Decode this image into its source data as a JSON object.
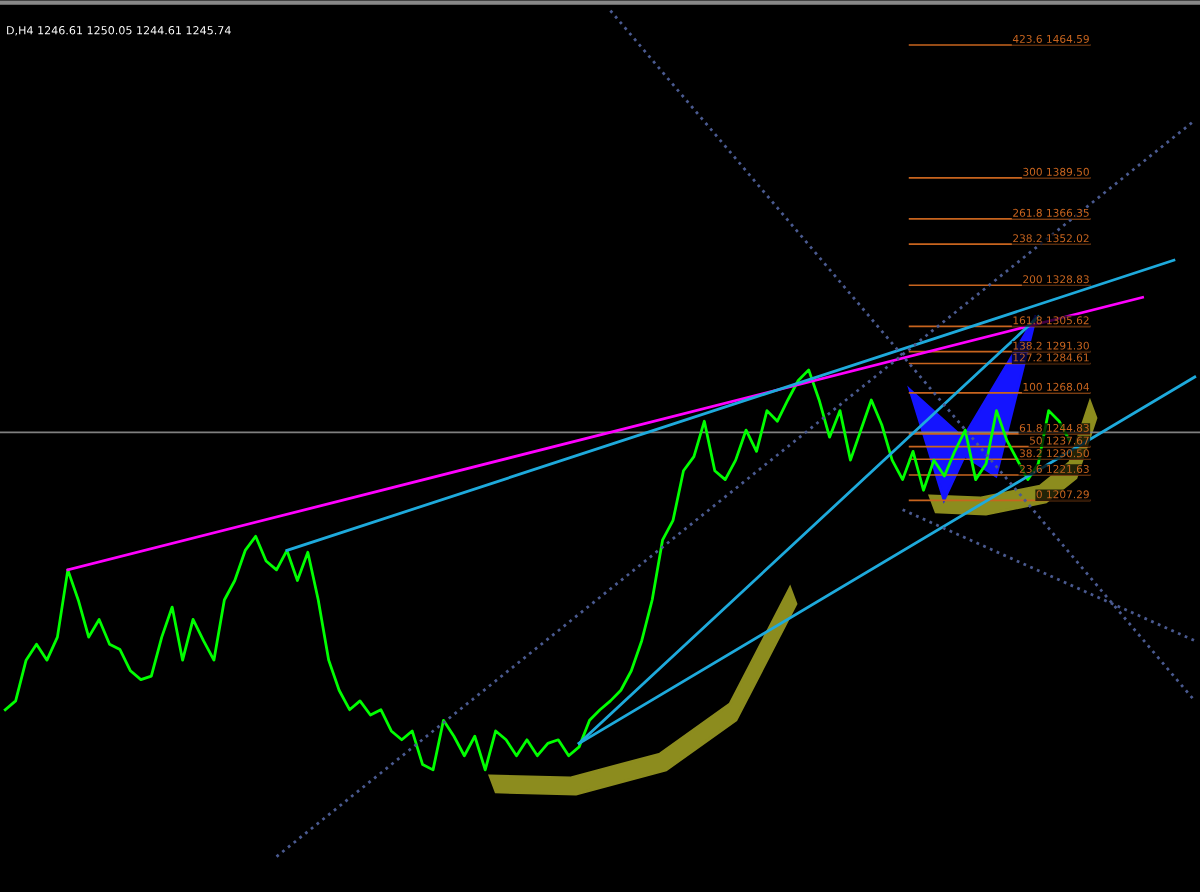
{
  "chart_data": {
    "type": "line",
    "title": "D,H4 1246.61 1250.05 1244.61 1245.74",
    "ylim": [
      986,
      1490
    ],
    "categories": [
      null,
      null,
      null,
      null,
      null,
      null,
      null,
      null,
      null,
      null,
      null,
      null,
      null,
      null,
      null,
      null,
      null,
      null,
      null,
      null,
      null,
      null,
      null,
      null,
      null,
      null,
      null,
      null,
      null,
      null,
      null,
      null,
      null,
      null,
      null,
      null,
      null,
      null,
      null,
      null,
      null,
      null,
      null,
      null,
      null,
      null,
      null,
      null,
      null,
      null,
      null,
      null,
      null,
      null,
      null,
      null,
      null,
      null,
      null,
      null,
      null,
      null,
      null,
      null,
      null,
      null,
      null,
      null,
      null,
      null,
      null,
      null,
      null,
      null,
      null,
      null,
      null,
      null,
      null,
      null,
      null,
      null,
      null,
      null,
      null,
      null,
      null,
      null,
      null,
      null,
      null,
      null,
      null,
      null,
      null,
      null,
      null,
      null,
      null,
      null,
      null,
      null,
      null,
      null,
      null,
      null,
      null,
      null,
      null,
      null,
      null,
      null,
      null,
      null,
      null
    ],
    "series": [
      {
        "color": "#00ff00",
        "values": [
          1089,
          1094,
          1117,
          1126,
          1117,
          1130,
          1168,
          1151,
          1130,
          1140,
          1126,
          1123,
          1111,
          1106,
          1108,
          1130,
          1147,
          1117,
          1140,
          1128,
          1117,
          1151,
          1162,
          1179,
          1187,
          1173,
          1168,
          1179,
          1162,
          1178,
          1151,
          1117,
          1100,
          1089,
          1094,
          1086,
          1089,
          1077,
          1072,
          1077,
          1058,
          1055,
          1083,
          1074,
          1063,
          1074,
          1055,
          1077,
          1072,
          1063,
          1072,
          1063,
          1070,
          1072,
          1063,
          1068,
          1083,
          1089,
          1094,
          1100,
          1111,
          1128,
          1151,
          1185,
          1196,
          1224,
          1232,
          1252,
          1224,
          1219,
          1230,
          1247,
          1235,
          1258,
          1252,
          1264,
          1275,
          1281,
          1264,
          1243,
          1258,
          1230,
          1247,
          1264,
          1250,
          1230,
          1219,
          1235,
          1213,
          1230,
          1221,
          1235,
          1247,
          1219,
          1228,
          1258,
          1241,
          1230,
          1219,
          1228,
          1258,
          1252,
          1241,
          null,
          null,
          null,
          null,
          null,
          null,
          null,
          null,
          null,
          null,
          null,
          null
        ]
      },
      {
        "type": "line",
        "color": "#ff00ff",
        "values": [
          null,
          null,
          null,
          null,
          null,
          null,
          1168,
          null,
          null,
          null,
          null,
          null,
          null,
          null,
          null,
          null,
          null,
          null,
          null,
          null,
          null,
          null,
          null,
          null,
          null,
          null,
          null,
          null,
          null,
          null,
          null,
          null,
          null,
          null,
          null,
          null,
          null,
          null,
          null,
          null,
          null,
          null,
          null,
          null,
          null,
          null,
          null,
          null,
          null,
          null,
          null,
          null,
          null,
          null,
          null,
          null,
          null,
          null,
          null,
          null,
          null,
          null,
          null,
          null,
          null,
          null,
          null,
          null,
          null,
          null,
          null,
          null,
          null,
          null,
          null,
          null,
          null,
          null,
          null,
          null,
          null,
          null,
          null,
          null,
          null,
          null,
          null,
          null,
          null,
          null,
          null,
          null,
          null,
          null,
          null,
          null,
          null,
          null,
          null,
          null,
          null,
          null,
          null,
          null,
          null,
          null,
          null,
          null,
          null,
          1322,
          null,
          null,
          null,
          null,
          null
        ]
      },
      {
        "type": "line",
        "color": "#1eaadc",
        "values": [
          null,
          null,
          null,
          null,
          null,
          null,
          null,
          null,
          null,
          null,
          null,
          null,
          null,
          null,
          null,
          null,
          null,
          null,
          null,
          null,
          null,
          null,
          null,
          null,
          null,
          null,
          null,
          1179,
          null,
          null,
          null,
          null,
          null,
          null,
          null,
          null,
          null,
          null,
          null,
          null,
          null,
          null,
          null,
          null,
          null,
          null,
          null,
          null,
          null,
          null,
          null,
          null,
          null,
          null,
          null,
          null,
          null,
          null,
          null,
          null,
          null,
          null,
          null,
          null,
          null,
          null,
          null,
          null,
          null,
          null,
          null,
          null,
          null,
          null,
          null,
          null,
          null,
          null,
          null,
          null,
          null,
          null,
          null,
          null,
          null,
          null,
          null,
          null,
          null,
          null,
          null,
          null,
          null,
          null,
          null,
          null,
          null,
          null,
          null,
          null,
          null,
          null,
          null,
          null,
          null,
          null,
          null,
          null,
          null,
          null,
          null,
          null,
          1343,
          null,
          null
        ]
      },
      {
        "type": "line",
        "color": "#1eaadc",
        "values": [
          null,
          null,
          null,
          null,
          null,
          null,
          null,
          null,
          null,
          null,
          null,
          null,
          null,
          null,
          null,
          null,
          null,
          null,
          null,
          null,
          null,
          null,
          null,
          null,
          null,
          null,
          null,
          null,
          null,
          null,
          null,
          null,
          null,
          null,
          null,
          null,
          null,
          null,
          null,
          null,
          null,
          null,
          null,
          null,
          null,
          null,
          null,
          null,
          null,
          null,
          null,
          null,
          null,
          null,
          null,
          1070,
          null,
          null,
          null,
          null,
          null,
          null,
          null,
          null,
          null,
          null,
          null,
          null,
          null,
          null,
          null,
          null,
          null,
          null,
          null,
          null,
          null,
          null,
          null,
          null,
          null,
          null,
          null,
          null,
          null,
          null,
          null,
          null,
          null,
          null,
          null,
          null,
          null,
          null,
          null,
          null,
          null,
          null,
          null,
          1311,
          null,
          null,
          null,
          null,
          null,
          null,
          null,
          null,
          null,
          null,
          null,
          null,
          null,
          null,
          null
        ]
      },
      {
        "type": "line",
        "color": "#1eaadc",
        "values": [
          null,
          null,
          null,
          null,
          null,
          null,
          null,
          null,
          null,
          null,
          null,
          null,
          null,
          null,
          null,
          null,
          null,
          null,
          null,
          null,
          null,
          null,
          null,
          null,
          null,
          null,
          null,
          null,
          null,
          null,
          null,
          null,
          null,
          null,
          null,
          null,
          null,
          null,
          null,
          null,
          null,
          null,
          null,
          null,
          null,
          null,
          null,
          null,
          null,
          null,
          null,
          null,
          null,
          null,
          null,
          1070,
          null,
          null,
          null,
          null,
          null,
          null,
          null,
          null,
          null,
          null,
          null,
          null,
          null,
          null,
          null,
          null,
          null,
          null,
          null,
          null,
          null,
          null,
          null,
          null,
          null,
          null,
          null,
          null,
          null,
          null,
          null,
          null,
          null,
          null,
          null,
          null,
          null,
          null,
          null,
          null,
          null,
          null,
          null,
          null,
          null,
          null,
          null,
          null,
          null,
          null,
          null,
          null,
          null,
          null,
          null,
          null,
          null,
          null,
          1277
        ]
      },
      {
        "type": "line",
        "color": "#4a5a90",
        "line_style": "dotted",
        "values": [
          null,
          null,
          null,
          null,
          null,
          null,
          null,
          null,
          null,
          null,
          null,
          null,
          null,
          null,
          null,
          null,
          null,
          null,
          null,
          null,
          null,
          null,
          null,
          null,
          null,
          null,
          null,
          null,
          null,
          null,
          null,
          null,
          null,
          null,
          null,
          null,
          null,
          null,
          null,
          null,
          null,
          null,
          null,
          null,
          null,
          null,
          null,
          null,
          null,
          null,
          null,
          null,
          null,
          null,
          null,
          null,
          null,
          null,
          1484,
          null,
          null,
          null,
          null,
          null,
          null,
          null,
          null,
          null,
          null,
          null,
          null,
          null,
          null,
          null,
          null,
          null,
          null,
          null,
          null,
          null,
          null,
          null,
          null,
          null,
          null,
          null,
          null,
          null,
          null,
          null,
          null,
          null,
          null,
          null,
          null,
          null,
          null,
          null,
          null,
          null,
          null,
          null,
          null,
          null,
          null,
          null,
          null,
          null,
          null,
          null,
          null,
          null,
          null,
          null,
          1094
        ]
      },
      {
        "type": "line",
        "color": "#4a5a90",
        "line_style": "dotted",
        "values": [
          null,
          null,
          null,
          null,
          null,
          null,
          null,
          null,
          null,
          null,
          null,
          null,
          null,
          null,
          null,
          null,
          null,
          null,
          null,
          null,
          null,
          null,
          null,
          null,
          null,
          null,
          1006,
          null,
          null,
          null,
          null,
          null,
          null,
          null,
          null,
          null,
          null,
          null,
          null,
          null,
          null,
          null,
          null,
          null,
          null,
          null,
          null,
          null,
          null,
          null,
          null,
          null,
          null,
          null,
          null,
          null,
          null,
          null,
          null,
          null,
          null,
          null,
          null,
          null,
          null,
          null,
          null,
          null,
          null,
          null,
          null,
          null,
          null,
          null,
          null,
          null,
          null,
          null,
          null,
          null,
          null,
          null,
          null,
          null,
          null,
          null,
          null,
          null,
          null,
          null,
          null,
          null,
          null,
          null,
          null,
          null,
          null,
          null,
          null,
          null,
          null,
          null,
          null,
          null,
          null,
          null,
          null,
          null,
          null,
          null,
          null,
          null,
          null,
          null,
          1422
        ]
      },
      {
        "type": "line",
        "color": "#4a5a90",
        "line_style": "dotted",
        "values": [
          null,
          null,
          null,
          null,
          null,
          null,
          null,
          null,
          null,
          null,
          null,
          null,
          null,
          null,
          null,
          null,
          null,
          null,
          null,
          null,
          null,
          null,
          null,
          null,
          null,
          null,
          null,
          null,
          null,
          null,
          null,
          null,
          null,
          null,
          null,
          null,
          null,
          null,
          null,
          null,
          null,
          null,
          null,
          null,
          null,
          null,
          null,
          null,
          null,
          null,
          null,
          null,
          null,
          null,
          null,
          null,
          null,
          null,
          null,
          null,
          null,
          null,
          null,
          null,
          null,
          null,
          null,
          null,
          null,
          null,
          null,
          null,
          null,
          null,
          null,
          null,
          null,
          null,
          null,
          null,
          null,
          null,
          null,
          null,
          null,
          null,
          1202,
          null,
          null,
          null,
          null,
          null,
          null,
          null,
          null,
          null,
          null,
          null,
          null,
          null,
          null,
          null,
          null,
          null,
          null,
          null,
          null,
          null,
          null,
          null,
          null,
          null,
          null,
          null,
          1128
        ]
      }
    ],
    "ref_lines": [
      {
        "axis": "y",
        "value": 1245.74,
        "color": "#808080"
      },
      {
        "axis": "y",
        "value": 1464.59,
        "label": "423.6 1464.59",
        "color": "#c8641e"
      },
      {
        "axis": "y",
        "value": 1389.5,
        "label": "300 1389.50",
        "color": "#c8641e"
      },
      {
        "axis": "y",
        "value": 1366.35,
        "label": "261.8 1366.35",
        "color": "#c8641e"
      },
      {
        "axis": "y",
        "value": 1352.02,
        "label": "238.2 1352.02",
        "color": "#c8641e"
      },
      {
        "axis": "y",
        "value": 1328.83,
        "label": "200 1328.83",
        "color": "#c8641e"
      },
      {
        "axis": "y",
        "value": 1305.62,
        "label": "161.8 1305.62",
        "color": "#c8641e"
      },
      {
        "axis": "y",
        "value": 1291.3,
        "label": "138.2 1291.30",
        "color": "#c8641e"
      },
      {
        "axis": "y",
        "value": 1284.61,
        "label": "127.2 1284.61",
        "color": "#c8641e"
      },
      {
        "axis": "y",
        "value": 1268.04,
        "label": "100 1268.04",
        "color": "#c8641e"
      },
      {
        "axis": "y",
        "value": 1244.83,
        "label": "61.8 1244.83",
        "color": "#c8641e"
      },
      {
        "axis": "y",
        "value": 1237.67,
        "label": "50 1237.67",
        "color": "#c8641e"
      },
      {
        "axis": "y",
        "value": 1230.5,
        "label": "38.2 1230.50",
        "color": "#c8641e"
      },
      {
        "axis": "y",
        "value": 1221.63,
        "label": "23.6 1221.63",
        "color": "#c8641e"
      },
      {
        "axis": "y",
        "value": 1207.29,
        "label": "0 1207.29",
        "color": "#c8641e"
      }
    ]
  }
}
